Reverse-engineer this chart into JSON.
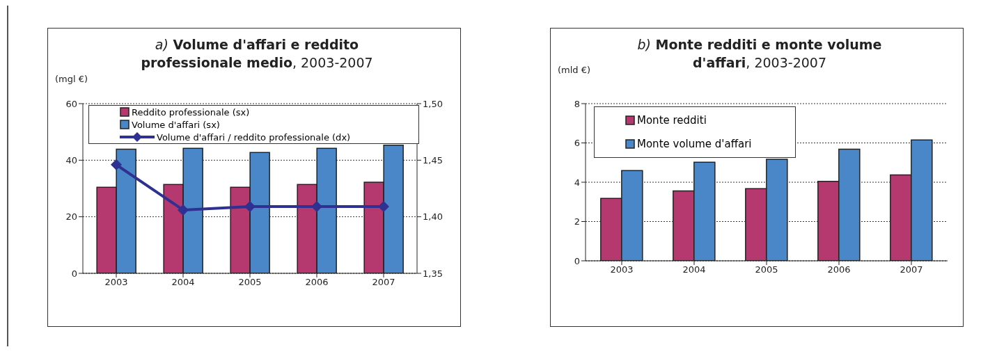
{
  "chart_data": [
    {
      "type": "bar",
      "title": "a) Volume d'affari e reddito professionale medio, 2003-2007",
      "ylabel": "(mgl €)",
      "categories": [
        "2003",
        "2004",
        "2005",
        "2006",
        "2007"
      ],
      "series": [
        {
          "name": "Reddito professionale (sx)",
          "color": "#b5386f",
          "values": [
            30.4,
            31.4,
            30.4,
            31.4,
            32.2
          ]
        },
        {
          "name": "Volume d'affari (sx)",
          "color": "#4a87c8",
          "values": [
            43.9,
            44.2,
            42.7,
            44.2,
            45.3
          ]
        },
        {
          "name": "Volume d'affari / reddito professionale (dx)",
          "type": "line",
          "axis": "y2",
          "color": "#2e3192",
          "marker": "diamond",
          "values": [
            1.446,
            1.406,
            1.409,
            1.409,
            1.409
          ]
        }
      ],
      "ylim": [
        0,
        60
      ],
      "yticks": [
        0,
        20,
        40,
        60
      ],
      "y2lim": [
        1.35,
        1.5
      ],
      "y2ticks": [
        {
          "value": 1.35,
          "label": "1,35"
        },
        {
          "value": 1.4,
          "label": "1,40"
        },
        {
          "value": 1.45,
          "label": "1,45"
        },
        {
          "value": 1.5,
          "label": "1,50"
        }
      ],
      "grid": "y",
      "legend": "top"
    },
    {
      "type": "bar",
      "title": "b) Monte redditi e monte volume d'affari, 2003-2007",
      "ylabel": "(mld €)",
      "categories": [
        "2003",
        "2004",
        "2005",
        "2006",
        "2007"
      ],
      "series": [
        {
          "name": "Monte redditi",
          "color": "#b5386f",
          "values": [
            3.18,
            3.56,
            3.67,
            4.04,
            4.37
          ]
        },
        {
          "name": "Monte volume d'affari",
          "color": "#4a87c8",
          "values": [
            4.59,
            5.02,
            5.17,
            5.68,
            6.15
          ]
        }
      ],
      "ylim": [
        0,
        8
      ],
      "yticks": [
        0,
        2,
        4,
        6,
        8
      ],
      "grid": "y",
      "legend": "top left"
    }
  ]
}
